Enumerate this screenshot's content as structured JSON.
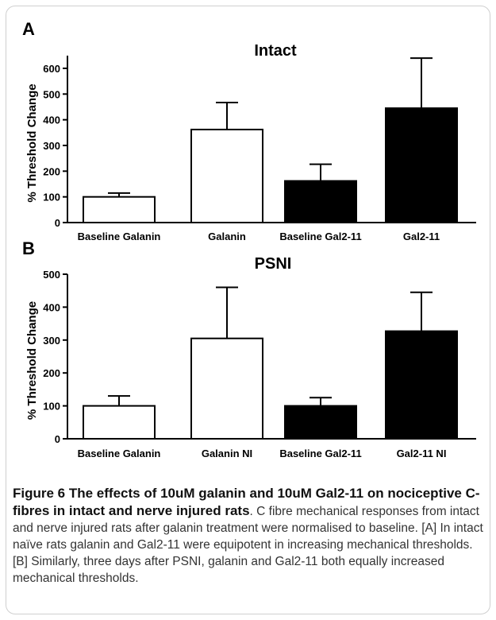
{
  "chart_data": [
    {
      "type": "bar",
      "panel": "A",
      "title": "Intact",
      "ylabel": "% Threshold Change",
      "ylim": [
        0,
        650
      ],
      "yticks": [
        0,
        100,
        200,
        300,
        400,
        500,
        600
      ],
      "categories": [
        "Baseline Galanin",
        "Galanin",
        "Baseline Gal2-11",
        "Gal2-11"
      ],
      "values": [
        100,
        362,
        162,
        445
      ],
      "errors": [
        15,
        105,
        65,
        195
      ],
      "fills": [
        "#ffffff",
        "#ffffff",
        "#000000",
        "#000000"
      ]
    },
    {
      "type": "bar",
      "panel": "B",
      "title": "PSNI",
      "ylabel": "% Threshold Change",
      "ylim": [
        0,
        500
      ],
      "yticks": [
        0,
        100,
        200,
        300,
        400,
        500
      ],
      "categories": [
        "Baseline Galanin",
        "Galanin NI",
        "Baseline Gal2-11",
        "Gal2-11 NI"
      ],
      "values": [
        100,
        305,
        100,
        327
      ],
      "errors": [
        30,
        155,
        25,
        118
      ],
      "fills": [
        "#ffffff",
        "#ffffff",
        "#000000",
        "#000000"
      ]
    }
  ],
  "caption": {
    "heading": "Figure 6 The effects of 10uM galanin and 10uM Gal2-11 on nociceptive C-fibres in intact and nerve injured rats",
    "body": ". C fibre mechanical responses from intact and nerve injured rats after galanin treatment were normalised to baseline. [A] In intact naïve rats galanin and Gal2-11 were equipotent in increasing mechanical thresholds. [B] Similarly, three days after PSNI, galanin and Gal2-11 both equally increased mechanical thresholds."
  }
}
